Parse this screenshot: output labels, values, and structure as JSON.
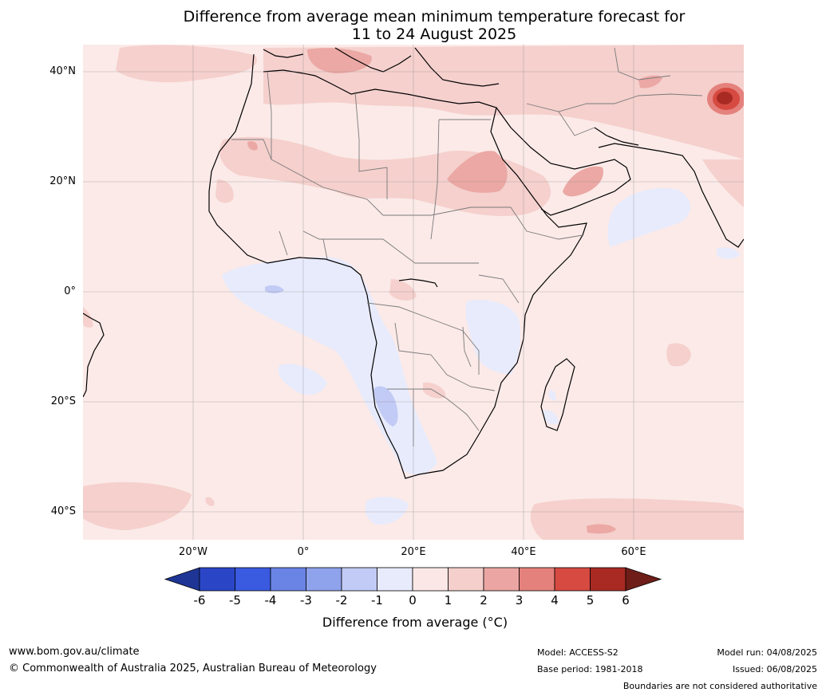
{
  "title_line1": "Difference from average mean minimum temperature forecast for",
  "title_line2": "11 to 24 August 2025",
  "lat_labels": [
    "40°N",
    "20°N",
    "0°",
    "20°S",
    "40°S"
  ],
  "lon_labels": [
    "20°W",
    "0°",
    "20°E",
    "40°E",
    "60°E"
  ],
  "colorbar": {
    "ticks": [
      "-6",
      "-5",
      "-4",
      "-3",
      "-2",
      "-1",
      "0",
      "1",
      "2",
      "3",
      "4",
      "5",
      "6"
    ],
    "colors": [
      "#1e3596",
      "#2a46c7",
      "#3a5ae0",
      "#6a84e6",
      "#8fa2ec",
      "#c2cbf5",
      "#e8ebfc",
      "#fbe8e6",
      "#f5cfcc",
      "#eba6a3",
      "#e5817c",
      "#d64a42",
      "#a82a23",
      "#6e1d18"
    ],
    "label": "Difference from average (°C)"
  },
  "footer": {
    "website": "www.bom.gov.au/climate",
    "copyright": "© Commonwealth of Australia 2025, Australian Bureau of Meteorology",
    "model": "Model: ACCESS-S2",
    "base_period": "Base period: 1981-2018",
    "model_run": "Model run: 04/08/2025",
    "issued": "Issued: 06/08/2025",
    "disclaimer": "Boundaries are not considered authoritative"
  }
}
